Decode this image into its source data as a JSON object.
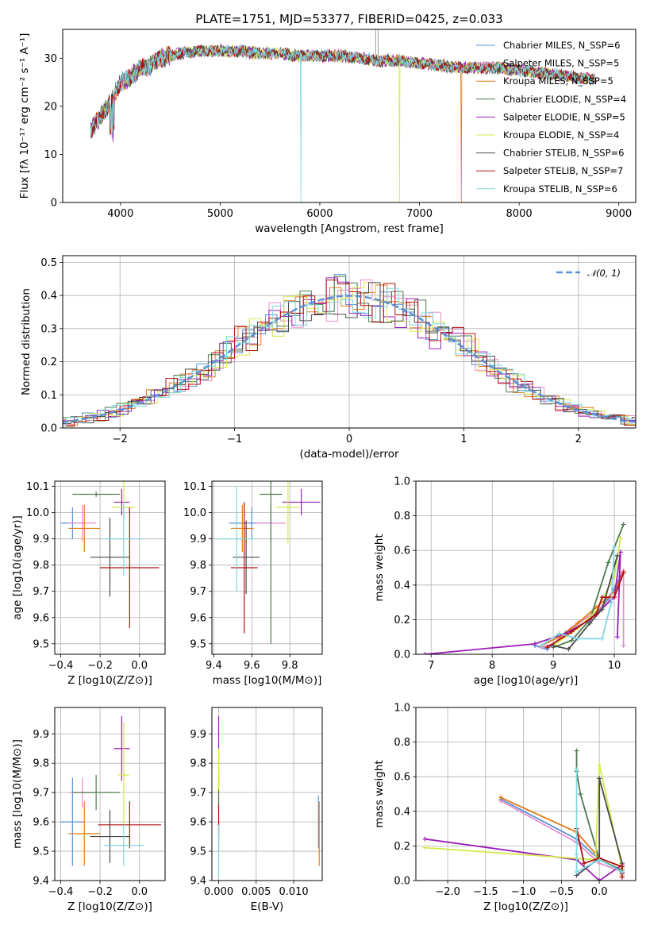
{
  "title": "PLATE=1751, MJD=53377, FIBERID=0425, z=0.033",
  "colors": [
    "#5b8fd6",
    "#e58fcb",
    "#e07b1a",
    "#4f7a4f",
    "#9b1fb5",
    "#d7e84c",
    "#4a4a4a",
    "#b01010",
    "#7fd7e0"
  ],
  "chart_data": [
    {
      "id": "spectrum",
      "type": "line",
      "xlabel": "wavelength [Angstrom, rest frame]",
      "ylabel": "Flux [fλ 10⁻¹⁷ erg cm⁻² s⁻¹ A⁻¹]",
      "xlim": [
        3420,
        9170
      ],
      "ylim": [
        0,
        36
      ],
      "xticks": [
        "4000",
        "5000",
        "6000",
        "7000",
        "8000",
        "9000"
      ],
      "yticks": [
        "0",
        "10",
        "20",
        "30"
      ],
      "grid": false,
      "legend_placement": "top-right",
      "legend": [
        "Chabrier MILES, N_SSP=6",
        "Salpeter MILES, N_SSP=5",
        "Kroupa MILES, N_SSP=5",
        "Chabrier ELODIE, N_SSP=4",
        "Salpeter ELODIE, N_SSP=5",
        "Kroupa ELODIE, N_SSP=4",
        "Chabrier STELIB, N_SSP=6",
        "Salpeter STELIB, N_SSP=7",
        "Kroupa STELIB, N_SSP=6"
      ],
      "continuum": {
        "x": [
          3700,
          3800,
          3900,
          4000,
          4100,
          4200,
          4300,
          4400,
          4600,
          4800,
          5000,
          5200,
          5400,
          5600,
          5800,
          6000,
          6200,
          6400,
          6600,
          6800,
          7000,
          7200,
          7400,
          7600,
          7800,
          8000,
          8200,
          8400,
          8600,
          8750
        ],
        "y": [
          15,
          18,
          21,
          25,
          26,
          28,
          28.5,
          30,
          31,
          31.5,
          31.5,
          31.5,
          31,
          31,
          30.5,
          30.5,
          30.5,
          30,
          29.5,
          29.5,
          29,
          28.5,
          28,
          28,
          28,
          27.5,
          27,
          26.5,
          26,
          25.5
        ]
      },
      "dropouts": [
        {
          "x": 3900,
          "series": 5
        },
        {
          "x": 5810,
          "series": 8
        },
        {
          "x": 6800,
          "series": 5
        },
        {
          "x": 7420,
          "series": 2
        }
      ]
    },
    {
      "id": "residuals",
      "type": "histogram",
      "xlabel": "(data-model)/error",
      "ylabel": "Normed distribution",
      "xlim": [
        -2.5,
        2.5
      ],
      "ylim": [
        0,
        0.52
      ],
      "xticks": [
        "−2",
        "−1",
        "0",
        "1",
        "2"
      ],
      "yticks": [
        "0.0",
        "0.1",
        "0.2",
        "0.3",
        "0.4",
        "0.5"
      ],
      "grid": true,
      "legend_placement": "top-right",
      "legend": [
        "𝒩(0, 1)"
      ],
      "bin_width": 0.1
    },
    {
      "id": "age-vs-Z",
      "type": "errorbar",
      "xlabel": "Z [log10(Z/Z⊙)]",
      "ylabel": "age  [log10(age/yr)]",
      "xlim": [
        -0.43,
        0.13
      ],
      "ylim": [
        9.46,
        10.12
      ],
      "xticks": [
        "−0.4",
        "−0.2",
        "0.0"
      ],
      "yticks": [
        "9.5",
        "9.6",
        "9.7",
        "9.8",
        "9.9",
        "10.0",
        "10.1"
      ],
      "points": [
        {
          "x": -0.34,
          "y": 9.96,
          "xerr": 0.06,
          "yerr": 0.06
        },
        {
          "x": -0.29,
          "y": 9.96,
          "xerr": 0.07,
          "yerr": 0.07
        },
        {
          "x": -0.28,
          "y": 9.94,
          "xerr": 0.08,
          "yerr": 0.09
        },
        {
          "x": -0.22,
          "y": 10.07,
          "xerr": 0.12,
          "yerr": 0.01
        },
        {
          "x": -0.09,
          "y": 10.04,
          "xerr": 0.04,
          "yerr": 0.05
        },
        {
          "x": -0.08,
          "y": 10.02,
          "xerr": 0.06,
          "yerr": 0.1
        },
        {
          "x": -0.15,
          "y": 9.83,
          "xerr": 0.1,
          "yerr": 0.15
        },
        {
          "x": -0.05,
          "y": 9.79,
          "xerr": 0.15,
          "yerr": 0.23
        },
        {
          "x": -0.08,
          "y": 9.9,
          "xerr": 0.1,
          "yerr": 0.14
        }
      ]
    },
    {
      "id": "age-vs-mass",
      "type": "errorbar",
      "xlabel": "mass [log10(M/M⊙)]",
      "ylabel": "",
      "xlim": [
        9.39,
        9.97
      ],
      "ylim": [
        9.46,
        10.12
      ],
      "xticks": [
        "9.4",
        "9.6",
        "9.8"
      ],
      "yticks": [
        "9.5",
        "9.6",
        "9.7",
        "9.8",
        "9.9",
        "10.0",
        "10.1"
      ],
      "points": [
        {
          "x": 9.6,
          "y": 9.96,
          "xerr": 0.12,
          "yerr": 0.06
        },
        {
          "x": 9.7,
          "y": 9.96,
          "xerr": 0.08,
          "yerr": 0.07
        },
        {
          "x": 9.55,
          "y": 9.94,
          "xerr": 0.06,
          "yerr": 0.09
        },
        {
          "x": 9.7,
          "y": 10.07,
          "xerr": 0.06,
          "yerr": 0.57
        },
        {
          "x": 9.86,
          "y": 10.04,
          "xerr": 0.1,
          "yerr": 0.05
        },
        {
          "x": 9.79,
          "y": 10.02,
          "xerr": 0.06,
          "yerr": 0.14
        },
        {
          "x": 9.57,
          "y": 9.83,
          "xerr": 0.07,
          "yerr": 0.14
        },
        {
          "x": 9.56,
          "y": 9.79,
          "xerr": 0.07,
          "yerr": 0.25
        },
        {
          "x": 9.52,
          "y": 9.9,
          "xerr": 0.1,
          "yerr": 0.2
        }
      ]
    },
    {
      "id": "massweight-vs-age",
      "type": "line",
      "xlabel": "age  [log10(age/yr)]",
      "ylabel": "mass weight",
      "xlim": [
        6.75,
        10.35
      ],
      "ylim": [
        0,
        1
      ],
      "xticks": [
        "7",
        "8",
        "9",
        "10"
      ],
      "yticks": [
        "0.0",
        "0.2",
        "0.4",
        "0.6",
        "0.8",
        "1.0"
      ],
      "grid": true,
      "series": [
        {
          "x": [
            8.7,
            8.9,
            9.2,
            9.6,
            9.9,
            10.1,
            10.15
          ],
          "y": [
            0.05,
            0.03,
            0.12,
            0.2,
            0.32,
            0.45,
            0.47
          ]
        },
        {
          "x": [
            8.8,
            9.0,
            9.3,
            9.7,
            10.0,
            10.15,
            10.15
          ],
          "y": [
            0.04,
            0.06,
            0.15,
            0.25,
            0.33,
            0.48,
            0.05
          ]
        },
        {
          "x": [
            8.8,
            9.1,
            9.4,
            9.7,
            10.0,
            10.15
          ],
          "y": [
            0.05,
            0.1,
            0.18,
            0.27,
            0.36,
            0.48
          ]
        },
        {
          "x": [
            9.0,
            9.3,
            9.6,
            9.9,
            10.15
          ],
          "y": [
            0.04,
            0.08,
            0.2,
            0.53,
            0.75
          ]
        },
        {
          "x": [
            6.9,
            8.7,
            9.2,
            9.6,
            10.0,
            10.1,
            10.05
          ],
          "y": [
            0.0,
            0.06,
            0.12,
            0.2,
            0.33,
            0.59,
            0.1
          ]
        },
        {
          "x": [
            9.0,
            9.4,
            9.7,
            10.0,
            10.1
          ],
          "y": [
            0.05,
            0.15,
            0.25,
            0.45,
            0.67
          ]
        },
        {
          "x": [
            9.0,
            9.25,
            9.6,
            9.8,
            10.05
          ],
          "y": [
            0.05,
            0.03,
            0.18,
            0.26,
            0.57
          ]
        },
        {
          "x": [
            8.9,
            9.3,
            9.7,
            9.8,
            10.0,
            10.15
          ],
          "y": [
            0.04,
            0.13,
            0.23,
            0.33,
            0.33,
            0.47
          ]
        },
        {
          "x": [
            8.8,
            9.1,
            9.4,
            9.8,
            9.95,
            10.0
          ],
          "y": [
            0.05,
            0.12,
            0.09,
            0.09,
            0.3,
            0.62
          ]
        }
      ]
    },
    {
      "id": "mass-vs-Z",
      "type": "errorbar",
      "xlabel": "Z [log10(Z/Z⊙)]",
      "ylabel": "mass [log10(M/M⊙)]",
      "xlim": [
        -0.43,
        0.13
      ],
      "ylim": [
        9.4,
        9.99
      ],
      "xticks": [
        "−0.4",
        "−0.2",
        "0.0"
      ],
      "yticks": [
        "9.4",
        "9.5",
        "9.6",
        "9.7",
        "9.8",
        "9.9"
      ],
      "points": [
        {
          "x": -0.34,
          "y": 9.6,
          "xerr": 0.06,
          "yerr": 0.15
        },
        {
          "x": -0.29,
          "y": 9.7,
          "xerr": 0.07,
          "yerr": 0.05
        },
        {
          "x": -0.28,
          "y": 9.56,
          "xerr": 0.08,
          "yerr": 0.11
        },
        {
          "x": -0.22,
          "y": 9.7,
          "xerr": 0.12,
          "yerr": 0.06
        },
        {
          "x": -0.09,
          "y": 9.85,
          "xerr": 0.04,
          "yerr": 0.11
        },
        {
          "x": -0.08,
          "y": 9.76,
          "xerr": 0.03,
          "yerr": 0.18
        },
        {
          "x": -0.15,
          "y": 9.55,
          "xerr": 0.1,
          "yerr": 0.09
        },
        {
          "x": -0.05,
          "y": 9.59,
          "xerr": 0.16,
          "yerr": 0.08
        },
        {
          "x": -0.08,
          "y": 9.52,
          "xerr": 0.1,
          "yerr": 0.07
        }
      ]
    },
    {
      "id": "mass-vs-EBV",
      "type": "errorbar",
      "xlabel": "E(B-V)",
      "ylabel": "",
      "xlim": [
        -0.0009,
        0.0138
      ],
      "ylim": [
        9.4,
        9.99
      ],
      "xticks": [
        "0.000",
        "0.005",
        "0.010"
      ],
      "yticks": [
        "9.4",
        "9.5",
        "9.6",
        "9.7",
        "9.8",
        "9.9"
      ],
      "points": [
        {
          "x": 0.0133,
          "y": 9.6,
          "yerr": 0.09
        },
        {
          "x": 0.0,
          "y": 9.7,
          "yerr": 0.04
        },
        {
          "x": 0.0134,
          "y": 9.56,
          "yerr": 0.11
        },
        {
          "x": 0.0,
          "y": 9.7,
          "yerr": 0.06
        },
        {
          "x": 0.0,
          "y": 9.85,
          "yerr": 0.11
        },
        {
          "x": 0.0,
          "y": 9.78,
          "yerr": 0.07
        },
        {
          "x": 0.0,
          "y": 9.55,
          "yerr": 0.05
        },
        {
          "x": 0.0,
          "y": 9.61,
          "yerr": 0.05
        },
        {
          "x": 0.0,
          "y": 9.5,
          "yerr": 0.09
        }
      ]
    },
    {
      "id": "massweight-vs-Z",
      "type": "line",
      "xlabel": "Z [log10(Z/Z⊙)]",
      "ylabel": "mass weight",
      "xlim": [
        -2.42,
        0.48
      ],
      "ylim": [
        0,
        1
      ],
      "xticks": [
        "−2.0",
        "−1.5",
        "−1.0",
        "−0.5",
        "0.0"
      ],
      "yticks": [
        "0.0",
        "0.2",
        "0.4",
        "0.6",
        "0.8",
        "1.0"
      ],
      "grid": true,
      "series": [
        {
          "x": [
            -1.3,
            -0.3,
            0.0,
            0.3,
            0.3
          ],
          "y": [
            0.47,
            0.24,
            0.12,
            0.06,
            0.03
          ]
        },
        {
          "x": [
            -1.3,
            -0.3,
            0.0,
            0.3,
            0.3
          ],
          "y": [
            0.46,
            0.22,
            0.1,
            0.05,
            0.02
          ]
        },
        {
          "x": [
            -1.3,
            -0.3,
            0.0,
            0.3,
            0.3
          ],
          "y": [
            0.48,
            0.28,
            0.13,
            0.08,
            0.04
          ]
        },
        {
          "x": [
            -0.3,
            -0.3,
            -0.25,
            0.0,
            0.3
          ],
          "y": [
            0.75,
            0.63,
            0.5,
            0.12,
            0.06
          ]
        },
        {
          "x": [
            -2.3,
            -0.3,
            0.0,
            0.3,
            0.3
          ],
          "y": [
            0.24,
            0.12,
            0.0,
            0.09,
            0.04
          ]
        },
        {
          "x": [
            -2.3,
            -0.05,
            0.0,
            0.3,
            0.3
          ],
          "y": [
            0.19,
            0.12,
            0.67,
            0.07,
            0.03
          ]
        },
        {
          "x": [
            -0.3,
            0.0,
            0.0,
            0.3,
            0.3
          ],
          "y": [
            0.03,
            0.13,
            0.59,
            0.1,
            0.05
          ]
        },
        {
          "x": [
            -0.3,
            -0.2,
            0.0,
            0.3,
            0.3
          ],
          "y": [
            0.3,
            0.1,
            0.13,
            0.08,
            0.02
          ]
        },
        {
          "x": [
            -0.3,
            -0.3,
            -0.3,
            0.0,
            0.3
          ],
          "y": [
            0.64,
            0.15,
            0.05,
            0.12,
            0.05
          ]
        }
      ]
    }
  ]
}
